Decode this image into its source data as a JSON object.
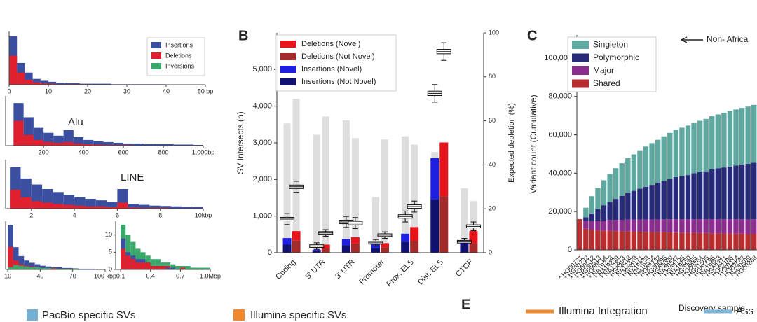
{
  "chart_data": [
    {
      "type": "histogram",
      "legend": "upper right",
      "series": [
        {
          "name": "Insertions",
          "color": "#3a4fa0"
        },
        {
          "name": "Deletions",
          "color": "#e0202e"
        },
        {
          "name": "Inversions",
          "color": "#3aa86a"
        }
      ],
      "panels": [
        {
          "bins": [
            0,
            2,
            4,
            6,
            8,
            10,
            12,
            14,
            16,
            18,
            20,
            22,
            24,
            26,
            28,
            30,
            32,
            34,
            36,
            38,
            40,
            42,
            44,
            46,
            48,
            50
          ],
          "counts": [
            [
              100,
              45,
              25,
              12,
              8,
              6,
              4,
              3,
              3,
              2,
              2,
              2,
              2,
              1,
              1,
              1,
              1,
              1,
              1,
              1,
              0.5,
              0.5,
              0.5,
              0.5,
              0.5
            ],
            [
              60,
              25,
              10,
              5,
              3,
              2,
              1,
              1,
              1,
              1,
              0.5,
              0.5,
              0.5,
              0.5,
              0.5,
              0.3,
              0.3,
              0.3,
              0.3,
              0.3,
              0,
              0,
              0,
              0,
              0
            ]
          ],
          "xlim": [
            0,
            50
          ],
          "ylim": [
            0,
            110
          ],
          "xticks": [
            0,
            10,
            20,
            30,
            40,
            {
              "value": 50,
              "label": "50 bp"
            }
          ]
        },
        {
          "bins": [
            50,
            100,
            150,
            200,
            250,
            300,
            350,
            400,
            450,
            500,
            550,
            600,
            650,
            700,
            750,
            800,
            850,
            900,
            950,
            1000
          ],
          "counts": [
            [
              60,
              40,
              25,
              18,
              14,
              22,
              12,
              8,
              6,
              5,
              4,
              3,
              3,
              2,
              2,
              2,
              1.5,
              1.5,
              1
            ],
            [
              35,
              15,
              8,
              5,
              4,
              5,
              3,
              2,
              1.5,
              1,
              1,
              1,
              0.5,
              0.5,
              0.5,
              0.5,
              0.3,
              0.3,
              0.3
            ]
          ],
          "xlim": [
            10,
            1000
          ],
          "ylim": [
            0,
            70
          ],
          "xticks": [
            200,
            400,
            600,
            800,
            {
              "value": 1000,
              "label": "1,000bp"
            }
          ],
          "annotation": "Alu"
        },
        {
          "bins": [
            1,
            1.5,
            2,
            2.5,
            3,
            3.5,
            4,
            4.5,
            5,
            5.5,
            6,
            6.5,
            7,
            7.5,
            8,
            8.5,
            9,
            9.5,
            10
          ],
          "counts": [
            [
              55,
              40,
              32,
              26,
              22,
              18,
              15,
              13,
              11,
              9,
              26,
              6,
              5,
              4,
              3.5,
              3,
              2.5,
              2
            ],
            [
              25,
              15,
              10,
              8,
              6,
              5,
              4,
              3,
              3,
              2,
              8,
              1.5,
              1,
              1,
              1,
              0.5,
              0.5,
              0.5
            ]
          ],
          "xlim": [
            0.8,
            10
          ],
          "ylim": [
            0,
            65
          ],
          "xticks": [
            2,
            4,
            6,
            8,
            {
              "value": 10,
              "label": "10kbp"
            }
          ],
          "annotation": "LINE"
        },
        {
          "bins": [
            10,
            15,
            20,
            25,
            30,
            35,
            40,
            45,
            50,
            55,
            60,
            65,
            70,
            75,
            80,
            85,
            90,
            95,
            100
          ],
          "counts": [
            [
              60,
              30,
              18,
              12,
              9,
              7,
              5,
              4,
              3,
              3,
              2,
              2,
              1.5,
              1,
              1,
              1,
              0.5,
              0.5
            ],
            [
              30,
              12,
              7,
              5,
              4,
              3,
              2,
              2,
              1.5,
              1,
              1,
              1,
              0.5,
              0.5,
              0.5,
              0.3,
              0.3,
              0.3
            ],
            [
              3,
              6,
              5,
              4,
              3,
              3,
              2,
              2,
              2,
              1,
              1,
              1,
              1,
              0.5,
              0.5,
              0.5,
              0.5,
              0.5
            ]
          ],
          "xlim": [
            8,
            100
          ],
          "ylim": [
            0,
            65
          ],
          "xticks": [
            10,
            40,
            70,
            {
              "value": 100,
              "label": "100 kbp"
            }
          ]
        },
        {
          "bins": [
            0.1,
            0.15,
            0.2,
            0.25,
            0.3,
            0.35,
            0.4,
            0.45,
            0.5,
            0.55,
            0.6,
            0.65,
            0.7,
            0.75,
            0.8,
            0.85,
            0.9,
            0.95,
            1.0
          ],
          "counts": [
            [
              9,
              5,
              4,
              3,
              3,
              2,
              1,
              1,
              1,
              0.5,
              0.5,
              0,
              0.5,
              0,
              0.5,
              0,
              0,
              0
            ],
            [
              6,
              4,
              3,
              2,
              2,
              2,
              1,
              1,
              1,
              1,
              0,
              1,
              0.5,
              0,
              0,
              0.5,
              0,
              0
            ],
            [
              13,
              10,
              8,
              6,
              5,
              4,
              3,
              3,
              2,
              2,
              1.5,
              1,
              1,
              1,
              0.5,
              0.5,
              0.5,
              0.5
            ]
          ],
          "xlim": [
            0.05,
            1.0
          ],
          "ylim": [
            0,
            14
          ],
          "xticks": [
            0.1,
            0.4,
            0.7,
            {
              "value": 1.0,
              "label": "1.0Mbp"
            }
          ],
          "yticks": [
            0,
            5,
            10
          ]
        }
      ]
    },
    {
      "type": "bar",
      "panel": "B",
      "legend": "upper left",
      "ylabel": "SV Intersects (n)",
      "y2label": "Expected depletion (%)",
      "categories": [
        "Coding",
        "5' UTR",
        "3' UTR",
        "Promoter",
        "Prox. ELS",
        "Dist. ELS",
        "CTCF"
      ],
      "series": [
        {
          "name": "Deletions (Novel)",
          "color": "#e8141c",
          "values": [
            260,
            100,
            170,
            110,
            380,
            1470,
            330
          ]
        },
        {
          "name": "Deletions (Not Novel)",
          "color": "#a52a2a",
          "values": [
            330,
            120,
            250,
            150,
            320,
            1540,
            260
          ]
        },
        {
          "name": "Insertions (Novel)",
          "color": "#1f1fe0",
          "values": [
            180,
            30,
            170,
            100,
            220,
            1120,
            80
          ]
        },
        {
          "name": "Insertions (Not Novel)",
          "color": "#101070",
          "values": [
            220,
            50,
            200,
            130,
            300,
            1460,
            220
          ]
        }
      ],
      "expected": {
        "color": "#dedede",
        "insertions": [
          3530,
          3220,
          3610,
          1520,
          3180,
          2750,
          1760
        ],
        "deletions": [
          4200,
          3720,
          3130,
          3090,
          2950,
          2990,
          1410
        ]
      },
      "depletion": {
        "axis": "y2",
        "insertions": [
          {
            "min": 12.8,
            "q1": 14.5,
            "median": 15.3,
            "q3": 16.1,
            "max": 17.8
          },
          {
            "min": 1.5,
            "q1": 2.4,
            "median": 3,
            "q3": 3.6,
            "max": 4.5
          },
          {
            "min": 11.5,
            "q1": 13.2,
            "median": 14,
            "q3": 14.8,
            "max": 16.5
          },
          {
            "min": 3,
            "q1": 3.9,
            "median": 4.5,
            "q3": 5.1,
            "max": 6
          },
          {
            "min": 14,
            "q1": 15.7,
            "median": 16.5,
            "q3": 17.3,
            "max": 19
          },
          {
            "min": 68.5,
            "q1": 71.5,
            "median": 72.5,
            "q3": 73.5,
            "max": 76.5
          },
          {
            "min": 3.5,
            "q1": 4.4,
            "median": 5,
            "q3": 5.6,
            "max": 6.5
          }
        ],
        "deletions": [
          {
            "min": 27.5,
            "q1": 29.2,
            "median": 30,
            "q3": 30.8,
            "max": 32.5
          },
          {
            "min": 7.5,
            "q1": 8.4,
            "median": 9,
            "q3": 9.6,
            "max": 10.5
          },
          {
            "min": 11,
            "q1": 12.7,
            "median": 13.5,
            "q3": 14.3,
            "max": 16
          },
          {
            "min": 6.5,
            "q1": 7.4,
            "median": 8,
            "q3": 8.6,
            "max": 9.5
          },
          {
            "min": 18.5,
            "q1": 20.2,
            "median": 21,
            "q3": 21.8,
            "max": 23.5
          },
          {
            "min": 87.5,
            "q1": 90.5,
            "median": 91.5,
            "q3": 92.5,
            "max": 95.5
          },
          {
            "min": 10,
            "q1": 11.3,
            "median": 12,
            "q3": 12.7,
            "max": 14
          }
        ]
      },
      "ylim": [
        0,
        6000
      ],
      "yticks": [
        0,
        {
          "value": 1000,
          "label": "1,000"
        },
        {
          "value": 2000,
          "label": "2,000"
        },
        {
          "value": 3000,
          "label": "3,000"
        },
        {
          "value": 4000,
          "label": "4,000"
        },
        {
          "value": 5000,
          "label": "5,000"
        }
      ],
      "y2lim": [
        0,
        100
      ],
      "y2ticks": [
        0,
        20,
        40,
        60,
        80,
        100
      ]
    },
    {
      "type": "stackedbar",
      "panel": "C",
      "legend": "upper left",
      "ylabel": "Variant count (Cumulative)",
      "xlabel": "Discovery sample",
      "annotation": "Non- Africa",
      "categories": [
        "* HG00731",
        "* HG00732",
        "* HG00512",
        "* HG00513",
        "* HG00514",
        "* NA19238",
        "* NA19239",
        "* NA12878",
        "HG02818",
        "NA12329",
        "HG00171",
        "NA18939",
        "NA18534",
        "HG03732",
        "HG00096",
        "HG03009",
        "NA20847",
        "HG03125",
        "NA19650",
        "HG03065",
        "HG00864",
        "HG01505",
        "HG01596",
        "NA19983",
        "HG03371",
        "HG02106",
        "HG01114",
        "HG02587",
        "NA20509",
        "HG00268"
      ],
      "series": [
        {
          "name": "Singleton",
          "color": "#5fa8a0",
          "values": [
            0,
            5000,
            9000,
            11000,
            13000,
            14500,
            16000,
            17000,
            18000,
            19000,
            20000,
            21000,
            21800,
            22500,
            23200,
            24000,
            24600,
            25200,
            25800,
            26300,
            26800,
            27300,
            27700,
            28100,
            28500,
            28900,
            29200,
            29500,
            29800,
            30100
          ]
        },
        {
          "name": "Polymorphic",
          "color": "#262a78",
          "values": [
            0,
            2000,
            4000,
            6000,
            8000,
            9500,
            11000,
            12500,
            14000,
            15000,
            16000,
            17000,
            18000,
            19000,
            20000,
            21000,
            22000,
            22500,
            23000,
            24000,
            24500,
            25000,
            26000,
            26500,
            27000,
            27500,
            28000,
            28500,
            29000,
            29500
          ]
        },
        {
          "name": "Major",
          "color": "#8a2d8e",
          "values": [
            0,
            4000,
            4500,
            5000,
            5300,
            5600,
            5800,
            6000,
            6200,
            6300,
            6400,
            6500,
            6600,
            6700,
            6800,
            6900,
            7000,
            7000,
            7100,
            7100,
            7200,
            7200,
            7300,
            7300,
            7400,
            7400,
            7500,
            7500,
            7500,
            7600
          ]
        },
        {
          "name": "Shared",
          "color": "#b72d30",
          "values": [
            16000,
            11000,
            10500,
            10200,
            10000,
            10000,
            9800,
            9700,
            9600,
            9500,
            9500,
            9400,
            9300,
            9200,
            9200,
            9100,
            9000,
            9000,
            8900,
            8900,
            8800,
            8800,
            8700,
            8700,
            8600,
            8600,
            8500,
            8500,
            8400,
            8400
          ]
        }
      ],
      "ylim": [
        0,
        112000
      ],
      "yticks": [
        0,
        {
          "value": 20000,
          "label": "20,000"
        },
        {
          "value": 40000,
          "label": "40,000"
        },
        {
          "value": 60000,
          "label": "60,000"
        },
        {
          "value": 80000,
          "label": "80,000"
        },
        {
          "value": 100000,
          "label": "100,000"
        }
      ]
    }
  ],
  "footer": {
    "panel": "E",
    "items": [
      {
        "label": "PacBio specific SVs",
        "color": "#76aed4",
        "shape": "square"
      },
      {
        "label": "Illumina specific SVs",
        "color": "#f0882e",
        "shape": "square"
      },
      {
        "label": "Illumina Integration",
        "color": "#ee8a30",
        "shape": "line"
      },
      {
        "label": "Ass",
        "color": "#7cb4d8",
        "shape": "line"
      }
    ]
  }
}
